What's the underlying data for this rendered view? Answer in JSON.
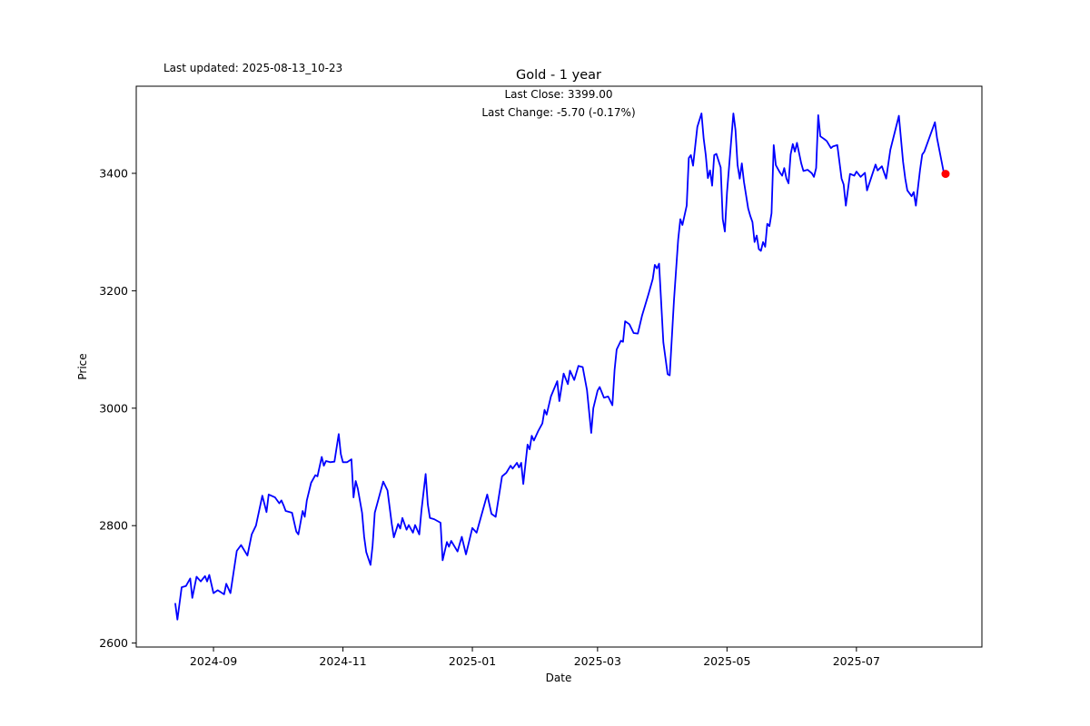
{
  "figure": {
    "last_updated_label": "Last updated: 2025-08-13_10-23",
    "title": "Gold - 1 year",
    "subtitle_line1": "Last Close: 3399.00",
    "subtitle_line2": "Last Change: -5.70 (-0.17%)",
    "xlabel": "Date",
    "ylabel": "Price"
  },
  "chart_data": {
    "type": "line",
    "title": "Gold - 1 year",
    "xlabel": "Date",
    "ylabel": "Price",
    "legend": "none",
    "grid": false,
    "line_color": "#0000ff",
    "marker_color": "#ff0000",
    "last_close": 3399.0,
    "last_change": -5.7,
    "last_change_pct": -0.17,
    "x_start_date": "2024-08-14",
    "x_end_date": "2025-08-12",
    "x_tick_dates": [
      "2024-09-01",
      "2024-11-01",
      "2025-01-01",
      "2025-03-01",
      "2025-05-01",
      "2025-07-01"
    ],
    "x_tick_labels": [
      "2024-09",
      "2024-11",
      "2025-01",
      "2025-03",
      "2025-05",
      "2025-07"
    ],
    "y_ticks": [
      2600,
      2800,
      3000,
      3200,
      3400
    ],
    "ylim": [
      2593,
      3548
    ],
    "points": [
      [
        "2024-08-14",
        2667
      ],
      [
        "2024-08-15",
        2640
      ],
      [
        "2024-08-17",
        2695
      ],
      [
        "2024-08-19",
        2697
      ],
      [
        "2024-08-21",
        2710
      ],
      [
        "2024-08-22",
        2677
      ],
      [
        "2024-08-24",
        2713
      ],
      [
        "2024-08-26",
        2705
      ],
      [
        "2024-08-28",
        2714
      ],
      [
        "2024-08-29",
        2705
      ],
      [
        "2024-08-30",
        2716
      ],
      [
        "2024-09-01",
        2685
      ],
      [
        "2024-09-03",
        2690
      ],
      [
        "2024-09-06",
        2683
      ],
      [
        "2024-09-07",
        2701
      ],
      [
        "2024-09-09",
        2685
      ],
      [
        "2024-09-12",
        2757
      ],
      [
        "2024-09-14",
        2767
      ],
      [
        "2024-09-17",
        2749
      ],
      [
        "2024-09-19",
        2785
      ],
      [
        "2024-09-21",
        2800
      ],
      [
        "2024-09-24",
        2851
      ],
      [
        "2024-09-26",
        2823
      ],
      [
        "2024-09-27",
        2853
      ],
      [
        "2024-09-30",
        2848
      ],
      [
        "2024-10-02",
        2838
      ],
      [
        "2024-10-03",
        2843
      ],
      [
        "2024-10-04",
        2835
      ],
      [
        "2024-10-05",
        2825
      ],
      [
        "2024-10-08",
        2822
      ],
      [
        "2024-10-10",
        2790
      ],
      [
        "2024-10-11",
        2785
      ],
      [
        "2024-10-13",
        2825
      ],
      [
        "2024-10-14",
        2815
      ],
      [
        "2024-10-15",
        2843
      ],
      [
        "2024-10-17",
        2873
      ],
      [
        "2024-10-19",
        2886
      ],
      [
        "2024-10-20",
        2884
      ],
      [
        "2024-10-22",
        2917
      ],
      [
        "2024-10-23",
        2902
      ],
      [
        "2024-10-24",
        2910
      ],
      [
        "2024-10-26",
        2908
      ],
      [
        "2024-10-28",
        2909
      ],
      [
        "2024-10-30",
        2956
      ],
      [
        "2024-10-31",
        2922
      ],
      [
        "2024-11-01",
        2908
      ],
      [
        "2024-11-03",
        2908
      ],
      [
        "2024-11-05",
        2913
      ],
      [
        "2024-11-06",
        2848
      ],
      [
        "2024-11-07",
        2876
      ],
      [
        "2024-11-08",
        2863
      ],
      [
        "2024-11-10",
        2822
      ],
      [
        "2024-11-11",
        2781
      ],
      [
        "2024-11-12",
        2755
      ],
      [
        "2024-11-14",
        2733
      ],
      [
        "2024-11-15",
        2766
      ],
      [
        "2024-11-16",
        2822
      ],
      [
        "2024-11-20",
        2875
      ],
      [
        "2024-11-22",
        2860
      ],
      [
        "2024-11-24",
        2803
      ],
      [
        "2024-11-25",
        2780
      ],
      [
        "2024-11-27",
        2803
      ],
      [
        "2024-11-28",
        2795
      ],
      [
        "2024-11-29",
        2813
      ],
      [
        "2024-12-01",
        2793
      ],
      [
        "2024-12-02",
        2801
      ],
      [
        "2024-12-04",
        2788
      ],
      [
        "2024-12-05",
        2801
      ],
      [
        "2024-12-07",
        2785
      ],
      [
        "2024-12-08",
        2826
      ],
      [
        "2024-12-10",
        2888
      ],
      [
        "2024-12-11",
        2836
      ],
      [
        "2024-12-12",
        2813
      ],
      [
        "2024-12-14",
        2811
      ],
      [
        "2024-12-17",
        2805
      ],
      [
        "2024-12-18",
        2741
      ],
      [
        "2024-12-20",
        2772
      ],
      [
        "2024-12-21",
        2764
      ],
      [
        "2024-12-22",
        2774
      ],
      [
        "2024-12-25",
        2756
      ],
      [
        "2024-12-27",
        2781
      ],
      [
        "2024-12-29",
        2751
      ],
      [
        "2025-01-01",
        2796
      ],
      [
        "2025-01-03",
        2788
      ],
      [
        "2025-01-04",
        2801
      ],
      [
        "2025-01-08",
        2853
      ],
      [
        "2025-01-10",
        2820
      ],
      [
        "2025-01-12",
        2815
      ],
      [
        "2025-01-15",
        2884
      ],
      [
        "2025-01-17",
        2890
      ],
      [
        "2025-01-19",
        2902
      ],
      [
        "2025-01-20",
        2897
      ],
      [
        "2025-01-22",
        2907
      ],
      [
        "2025-01-23",
        2899
      ],
      [
        "2025-01-24",
        2907
      ],
      [
        "2025-01-25",
        2871
      ],
      [
        "2025-01-27",
        2938
      ],
      [
        "2025-01-28",
        2930
      ],
      [
        "2025-01-29",
        2953
      ],
      [
        "2025-01-30",
        2945
      ],
      [
        "2025-02-01",
        2961
      ],
      [
        "2025-02-03",
        2974
      ],
      [
        "2025-02-04",
        2997
      ],
      [
        "2025-02-05",
        2989
      ],
      [
        "2025-02-07",
        3020
      ],
      [
        "2025-02-10",
        3046
      ],
      [
        "2025-02-11",
        3012
      ],
      [
        "2025-02-13",
        3059
      ],
      [
        "2025-02-15",
        3041
      ],
      [
        "2025-02-16",
        3064
      ],
      [
        "2025-02-18",
        3048
      ],
      [
        "2025-02-20",
        3072
      ],
      [
        "2025-02-22",
        3070
      ],
      [
        "2025-02-24",
        3031
      ],
      [
        "2025-02-26",
        2958
      ],
      [
        "2025-02-27",
        3000
      ],
      [
        "2025-03-01",
        3030
      ],
      [
        "2025-03-02",
        3036
      ],
      [
        "2025-03-04",
        3018
      ],
      [
        "2025-03-06",
        3020
      ],
      [
        "2025-03-08",
        3005
      ],
      [
        "2025-03-09",
        3065
      ],
      [
        "2025-03-10",
        3100
      ],
      [
        "2025-03-12",
        3115
      ],
      [
        "2025-03-13",
        3113
      ],
      [
        "2025-03-14",
        3148
      ],
      [
        "2025-03-16",
        3143
      ],
      [
        "2025-03-18",
        3128
      ],
      [
        "2025-03-20",
        3127
      ],
      [
        "2025-03-22",
        3158
      ],
      [
        "2025-03-25",
        3194
      ],
      [
        "2025-03-27",
        3220
      ],
      [
        "2025-03-28",
        3244
      ],
      [
        "2025-03-29",
        3238
      ],
      [
        "2025-03-30",
        3246
      ],
      [
        "2025-04-01",
        3112
      ],
      [
        "2025-04-03",
        3058
      ],
      [
        "2025-04-04",
        3056
      ],
      [
        "2025-04-06",
        3184
      ],
      [
        "2025-04-08",
        3287
      ],
      [
        "2025-04-09",
        3322
      ],
      [
        "2025-04-10",
        3312
      ],
      [
        "2025-04-12",
        3345
      ],
      [
        "2025-04-13",
        3426
      ],
      [
        "2025-04-14",
        3431
      ],
      [
        "2025-04-15",
        3413
      ],
      [
        "2025-04-17",
        3479
      ],
      [
        "2025-04-19",
        3502
      ],
      [
        "2025-04-20",
        3459
      ],
      [
        "2025-04-21",
        3431
      ],
      [
        "2025-04-22",
        3392
      ],
      [
        "2025-04-23",
        3405
      ],
      [
        "2025-04-24",
        3379
      ],
      [
        "2025-04-25",
        3431
      ],
      [
        "2025-04-26",
        3433
      ],
      [
        "2025-04-28",
        3410
      ],
      [
        "2025-04-29",
        3322
      ],
      [
        "2025-04-30",
        3301
      ],
      [
        "2025-05-01",
        3368
      ],
      [
        "2025-05-04",
        3502
      ],
      [
        "2025-05-05",
        3474
      ],
      [
        "2025-05-06",
        3414
      ],
      [
        "2025-05-07",
        3391
      ],
      [
        "2025-05-08",
        3417
      ],
      [
        "2025-05-09",
        3386
      ],
      [
        "2025-05-11",
        3340
      ],
      [
        "2025-05-12",
        3327
      ],
      [
        "2025-05-13",
        3317
      ],
      [
        "2025-05-14",
        3283
      ],
      [
        "2025-05-15",
        3294
      ],
      [
        "2025-05-16",
        3271
      ],
      [
        "2025-05-17",
        3268
      ],
      [
        "2025-05-18",
        3283
      ],
      [
        "2025-05-19",
        3275
      ],
      [
        "2025-05-20",
        3314
      ],
      [
        "2025-05-21",
        3310
      ],
      [
        "2025-05-22",
        3332
      ],
      [
        "2025-05-23",
        3448
      ],
      [
        "2025-05-24",
        3414
      ],
      [
        "2025-05-26",
        3401
      ],
      [
        "2025-05-27",
        3396
      ],
      [
        "2025-05-28",
        3409
      ],
      [
        "2025-05-29",
        3391
      ],
      [
        "2025-05-30",
        3383
      ],
      [
        "2025-05-31",
        3432
      ],
      [
        "2025-06-01",
        3450
      ],
      [
        "2025-06-02",
        3437
      ],
      [
        "2025-06-03",
        3452
      ],
      [
        "2025-06-05",
        3417
      ],
      [
        "2025-06-06",
        3404
      ],
      [
        "2025-06-08",
        3406
      ],
      [
        "2025-06-10",
        3400
      ],
      [
        "2025-06-11",
        3394
      ],
      [
        "2025-06-12",
        3409
      ],
      [
        "2025-06-13",
        3499
      ],
      [
        "2025-06-14",
        3463
      ],
      [
        "2025-06-16",
        3458
      ],
      [
        "2025-06-17",
        3455
      ],
      [
        "2025-06-19",
        3443
      ],
      [
        "2025-06-20",
        3446
      ],
      [
        "2025-06-22",
        3448
      ],
      [
        "2025-06-24",
        3391
      ],
      [
        "2025-06-25",
        3381
      ],
      [
        "2025-06-26",
        3345
      ],
      [
        "2025-06-28",
        3399
      ],
      [
        "2025-06-30",
        3396
      ],
      [
        "2025-07-01",
        3403
      ],
      [
        "2025-07-03",
        3394
      ],
      [
        "2025-07-05",
        3401
      ],
      [
        "2025-07-06",
        3371
      ],
      [
        "2025-07-10",
        3415
      ],
      [
        "2025-07-11",
        3405
      ],
      [
        "2025-07-13",
        3412
      ],
      [
        "2025-07-15",
        3391
      ],
      [
        "2025-07-17",
        3440
      ],
      [
        "2025-07-21",
        3498
      ],
      [
        "2025-07-23",
        3420
      ],
      [
        "2025-07-24",
        3391
      ],
      [
        "2025-07-25",
        3371
      ],
      [
        "2025-07-27",
        3361
      ],
      [
        "2025-07-28",
        3368
      ],
      [
        "2025-07-29",
        3345
      ],
      [
        "2025-07-31",
        3406
      ],
      [
        "2025-08-01",
        3432
      ],
      [
        "2025-08-02",
        3437
      ],
      [
        "2025-08-07",
        3487
      ],
      [
        "2025-08-08",
        3460
      ],
      [
        "2025-08-11",
        3404.7
      ],
      [
        "2025-08-12",
        3399
      ]
    ]
  }
}
